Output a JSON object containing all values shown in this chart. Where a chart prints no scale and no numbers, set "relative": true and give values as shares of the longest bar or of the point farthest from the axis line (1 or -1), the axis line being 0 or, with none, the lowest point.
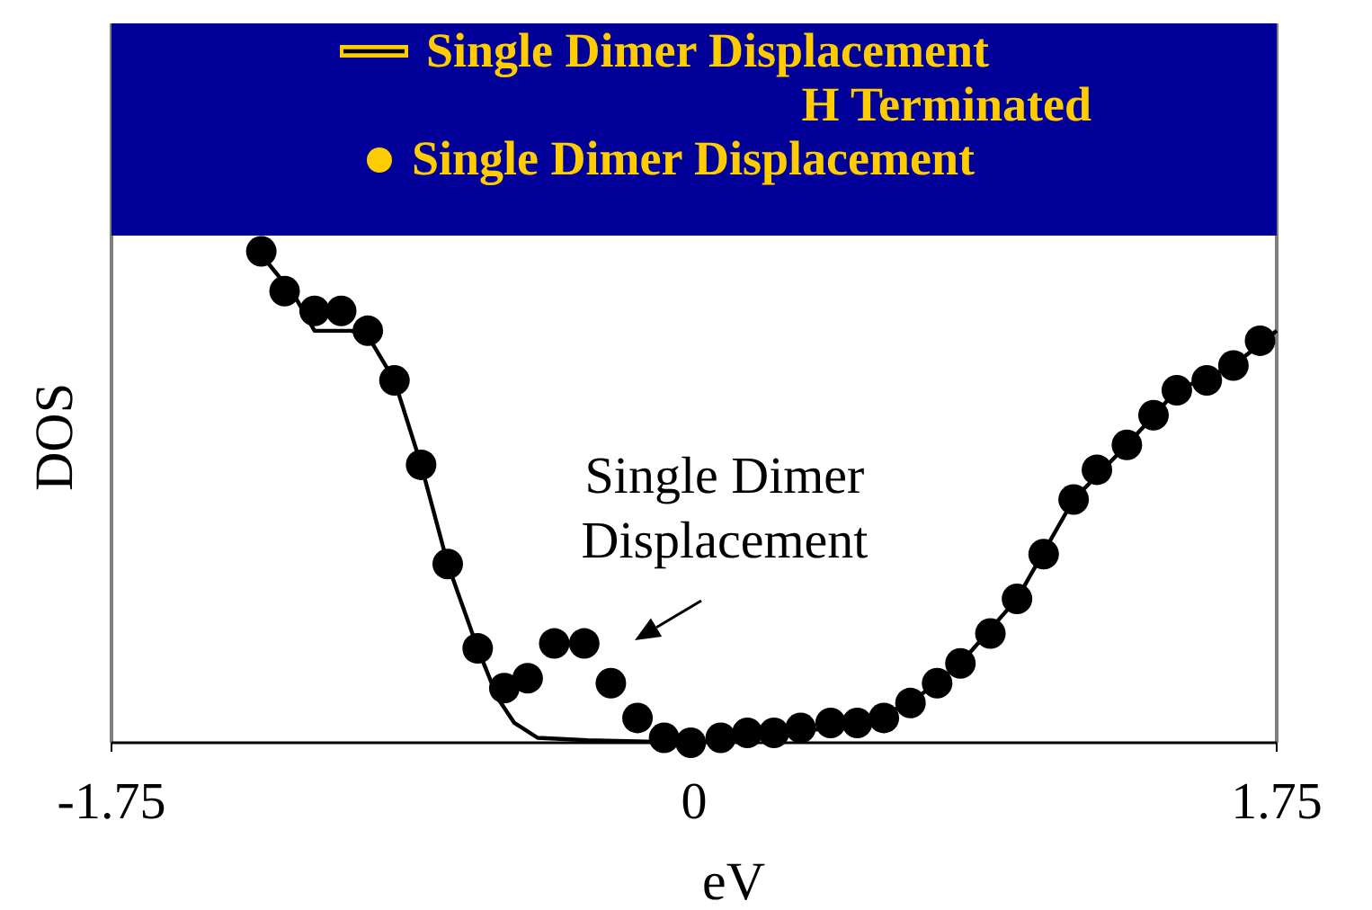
{
  "chart_data": {
    "type": "line",
    "xlabel": "eV",
    "ylabel": "DOS",
    "relative": true,
    "xlim": [
      -1.75,
      1.75
    ],
    "xticks": [
      -1.75,
      0,
      1.75
    ],
    "tick_labels": "x",
    "legend": "top",
    "grid": false,
    "annotations": [
      "Single Dimer Displacement"
    ],
    "series": [
      {
        "name": "Single Dimer Displacement H Terminated",
        "color": "#000000",
        "marker": "none",
        "x": [
          -1.32,
          -1.2,
          -1.14,
          -1.03,
          -0.98,
          -0.9,
          -0.82,
          -0.74,
          -0.65,
          -0.59,
          -0.54,
          -0.47,
          -0.32,
          0,
          0.3,
          0.5,
          0.65,
          0.8,
          0.97,
          1.14,
          1.3,
          1.45,
          1.62,
          1.75
        ],
        "values": [
          1,
          0.9,
          0.83,
          0.83,
          0.82,
          0.73,
          0.56,
          0.36,
          0.19,
          0.09,
          0.04,
          0.01,
          0.005,
          0,
          0.02,
          0.04,
          0.08,
          0.16,
          0.29,
          0.49,
          0.6,
          0.71,
          0.76,
          0.83
        ]
      },
      {
        "name": "Single Dimer Displacement",
        "type": "scatter",
        "color": "#000000",
        "marker": "circle",
        "x": [
          -1.3,
          -1.23,
          -1.14,
          -1.06,
          -0.98,
          -0.9,
          -0.82,
          -0.74,
          -0.65,
          -0.57,
          -0.5,
          -0.42,
          -0.33,
          -0.25,
          -0.17,
          -0.09,
          -0.01,
          0.08,
          0.16,
          0.24,
          0.32,
          0.41,
          0.49,
          0.57,
          0.65,
          0.73,
          0.8,
          0.89,
          0.97,
          1.05,
          1.14,
          1.21,
          1.3,
          1.38,
          1.45,
          1.54,
          1.62,
          1.7
        ],
        "values": [
          0.99,
          0.91,
          0.87,
          0.87,
          0.83,
          0.73,
          0.56,
          0.36,
          0.19,
          0.11,
          0.13,
          0.2,
          0.2,
          0.12,
          0.05,
          0.01,
          0,
          0.01,
          0.02,
          0.02,
          0.03,
          0.04,
          0.04,
          0.05,
          0.08,
          0.12,
          0.16,
          0.22,
          0.29,
          0.38,
          0.49,
          0.55,
          0.6,
          0.66,
          0.71,
          0.73,
          0.76,
          0.81
        ]
      }
    ]
  }
}
